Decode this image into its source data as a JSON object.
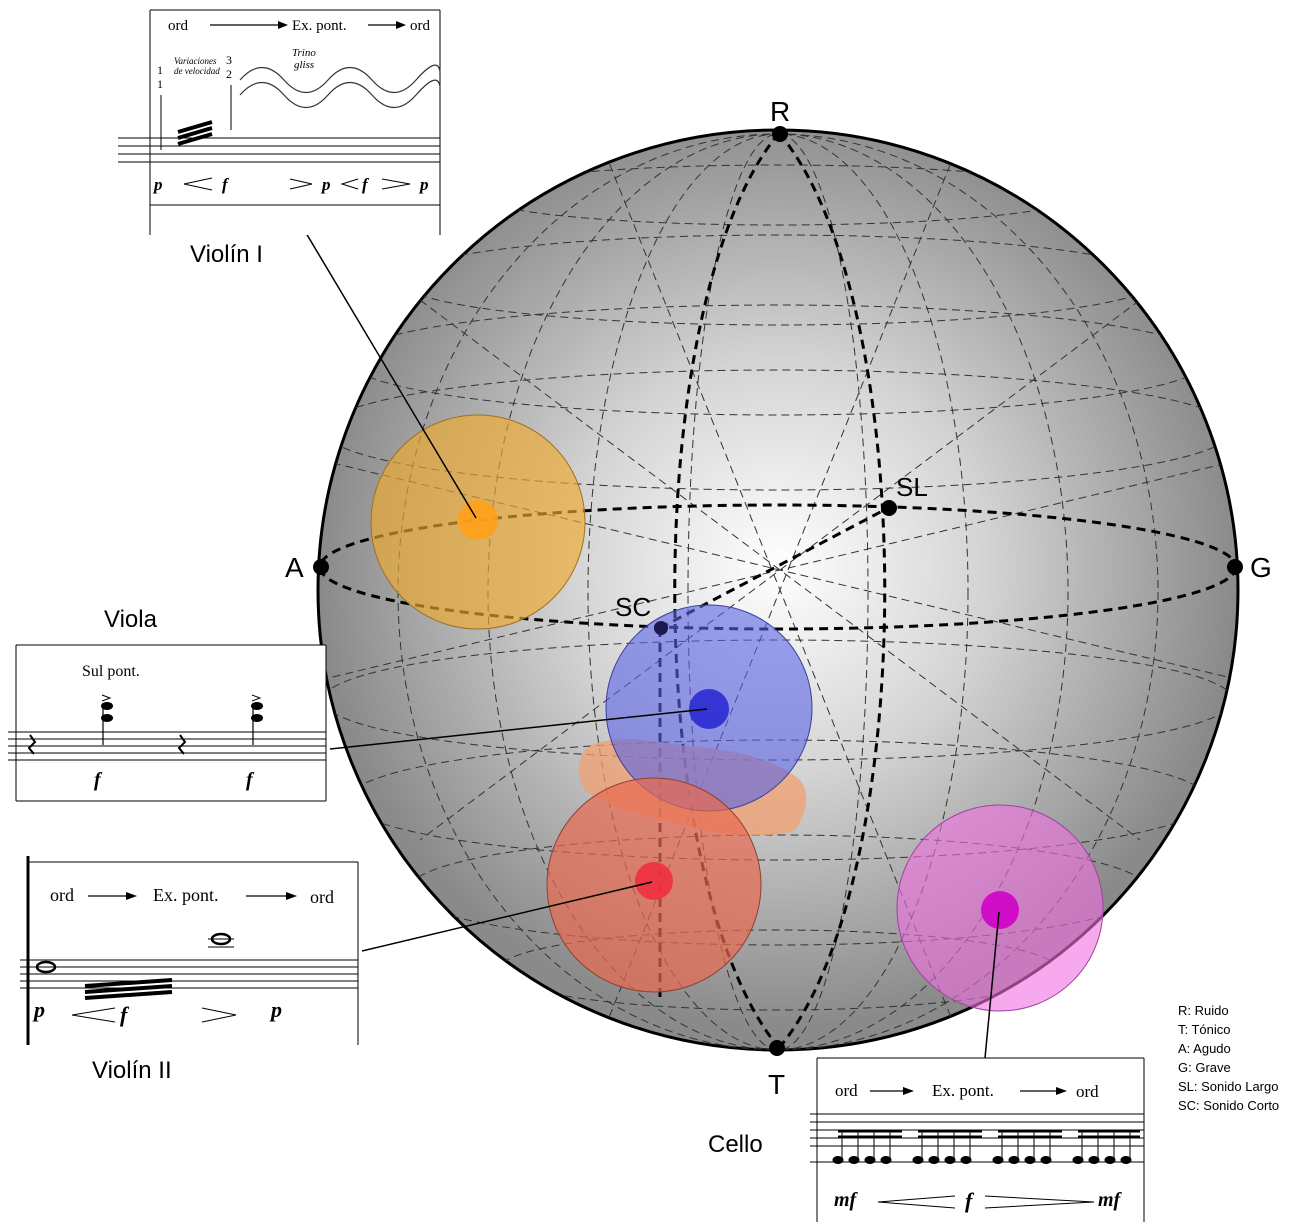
{
  "poles": {
    "R": "R",
    "T": "T",
    "A": "A",
    "G": "G",
    "SL": "SL",
    "SC": "SC"
  },
  "instruments": {
    "violin1": "Violín I",
    "viola": "Viola",
    "violin2": "Violín II",
    "cello": "Cello"
  },
  "scores": {
    "violin1": {
      "ord1": "ord",
      "expont": "Ex. pont.",
      "ord2": "ord",
      "var1": "Variaciones",
      "var2": "de velocidad",
      "trino1": "Trino",
      "trino2": "gliss",
      "n1": "1",
      "n2": "1",
      "n3": "3",
      "n4": "2",
      "dyn_p1": "p",
      "dyn_f1": "f",
      "dyn_p2": "p",
      "dyn_f2": "f",
      "dyn_p3": "p"
    },
    "viola": {
      "sulpont": "Sul pont.",
      "f1": "f",
      "f2": "f"
    },
    "violin2": {
      "ord1": "ord",
      "expont": "Ex. pont.",
      "ord2": "ord",
      "p1": "p",
      "f": "f",
      "p2": "p"
    },
    "cello": {
      "ord1": "ord",
      "expont": "Ex. pont.",
      "ord2": "ord",
      "mf1": "mf",
      "f": "f",
      "mf2": "mf"
    }
  },
  "legend": [
    "R: Ruido",
    "T: Tónico",
    "A: Agudo",
    "G: Grave",
    "SL: Sonido Largo",
    "SC: Sonido Corto"
  ],
  "colors": {
    "violin1": "#e8a33a",
    "viola": "#5a63e6",
    "violin2": "#e86a50",
    "cello": "#e050d6",
    "sphere_edge": "#777777"
  }
}
